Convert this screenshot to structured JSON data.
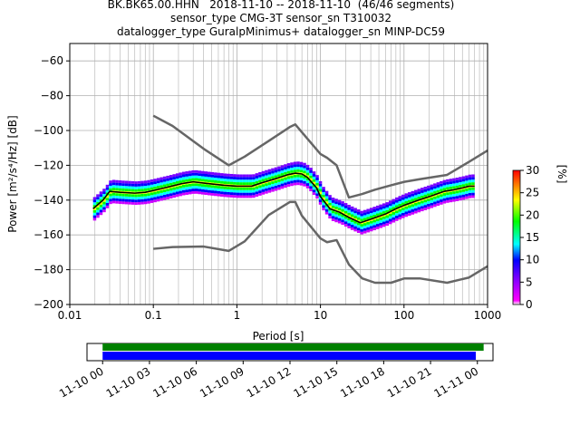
{
  "title_lines": [
    "BK.BK65.00.HHN   2018-11-10 -- 2018-11-10  (46/46 segments)",
    "sensor_type CMG-3T sensor_sn T310032",
    "datalogger_type GuralpMinimus+ datalogger_sn MINP-DC59"
  ],
  "chart_data": {
    "type": "heatmap",
    "xlabel": "Period [s]",
    "ylabel": "Power [m²/s⁴/Hz] [dB]",
    "xscale": "log",
    "xlim": [
      0.01,
      1000
    ],
    "ylim": [
      -200,
      -50
    ],
    "xticks": [
      0.01,
      0.1,
      1,
      10,
      100,
      1000
    ],
    "xtick_labels": [
      "0.01",
      "0.1",
      "1",
      "10",
      "100",
      "1000"
    ],
    "yticks": [
      -200,
      -180,
      -160,
      -140,
      -120,
      -100,
      -80,
      -60
    ],
    "ytick_labels": [
      "−200",
      "−180",
      "−160",
      "−140",
      "−120",
      "−100",
      "−80",
      "−60"
    ],
    "grid": true,
    "colorbar": {
      "label": "[%]",
      "range": [
        0,
        30
      ],
      "ticks": [
        0,
        5,
        10,
        15,
        20,
        25,
        30
      ],
      "tick_labels": [
        "0",
        "5",
        "10",
        "15",
        "20",
        "25",
        "30"
      ]
    },
    "noise_models": [
      {
        "name": "NHNM",
        "points": [
          [
            0.1,
            -91.5
          ],
          [
            0.17,
            -97.4
          ],
          [
            0.4,
            -110.5
          ],
          [
            0.8,
            -120
          ],
          [
            1.24,
            -115
          ],
          [
            2.4,
            -106
          ],
          [
            4.3,
            -98
          ],
          [
            5,
            -96.5
          ],
          [
            6,
            -101
          ],
          [
            10,
            -113.5
          ],
          [
            12,
            -115.7
          ],
          [
            15.6,
            -120
          ],
          [
            21.9,
            -138.5
          ],
          [
            31.6,
            -136.5
          ],
          [
            45,
            -134
          ],
          [
            70,
            -131.5
          ],
          [
            101,
            -129.5
          ],
          [
            154,
            -128
          ],
          [
            328,
            -125.5
          ],
          [
            600,
            -118
          ],
          [
            1000,
            -111.5
          ]
        ]
      },
      {
        "name": "NLNM",
        "points": [
          [
            0.1,
            -168
          ],
          [
            0.17,
            -167
          ],
          [
            0.4,
            -166.7
          ],
          [
            0.8,
            -169.2
          ],
          [
            1.24,
            -163.7
          ],
          [
            2.4,
            -148.6
          ],
          [
            4.3,
            -141.1
          ],
          [
            5,
            -141.1
          ],
          [
            6,
            -149
          ],
          [
            10,
            -162
          ],
          [
            12,
            -164.2
          ],
          [
            15.6,
            -163
          ],
          [
            21.9,
            -177
          ],
          [
            31.6,
            -185
          ],
          [
            45,
            -187.5
          ],
          [
            70,
            -187.5
          ],
          [
            101,
            -185
          ],
          [
            154,
            -185
          ],
          [
            328,
            -187.5
          ],
          [
            600,
            -184.5
          ],
          [
            1000,
            -178
          ]
        ]
      }
    ],
    "mode_curve": {
      "points": [
        [
          0.019,
          -145
        ],
        [
          0.025,
          -140
        ],
        [
          0.03,
          -135
        ],
        [
          0.04,
          -135.5
        ],
        [
          0.06,
          -136
        ],
        [
          0.08,
          -135.5
        ],
        [
          0.1,
          -134.5
        ],
        [
          0.15,
          -132.5
        ],
        [
          0.22,
          -130.5
        ],
        [
          0.3,
          -129.5
        ],
        [
          0.45,
          -130.5
        ],
        [
          0.7,
          -131.5
        ],
        [
          1,
          -132
        ],
        [
          1.5,
          -132
        ],
        [
          2,
          -130
        ],
        [
          3,
          -127.5
        ],
        [
          4,
          -125.5
        ],
        [
          5,
          -124.5
        ],
        [
          6,
          -125
        ],
        [
          7,
          -127
        ],
        [
          9,
          -133
        ],
        [
          10,
          -138
        ],
        [
          13,
          -145
        ],
        [
          17,
          -147
        ],
        [
          22,
          -150
        ],
        [
          30,
          -153
        ],
        [
          40,
          -151
        ],
        [
          60,
          -148
        ],
        [
          80,
          -145
        ],
        [
          100,
          -143
        ],
        [
          150,
          -140
        ],
        [
          200,
          -138
        ],
        [
          300,
          -135
        ],
        [
          400,
          -134
        ],
        [
          500,
          -133
        ],
        [
          600,
          -132
        ],
        [
          700,
          -132
        ]
      ]
    },
    "timeline": {
      "xtick_labels": [
        "11-10 00",
        "11-10 03",
        "11-10 06",
        "11-10 09",
        "11-10 12",
        "11-10 15",
        "11-10 18",
        "11-10 21",
        "11-11 00"
      ],
      "xlim_hours": [
        -1,
        25
      ],
      "data_bar_hours": [
        0,
        24.4
      ],
      "psd_bar_hours": [
        0,
        23.9
      ],
      "data_color": "#008000",
      "psd_color": "#0000ff"
    }
  }
}
